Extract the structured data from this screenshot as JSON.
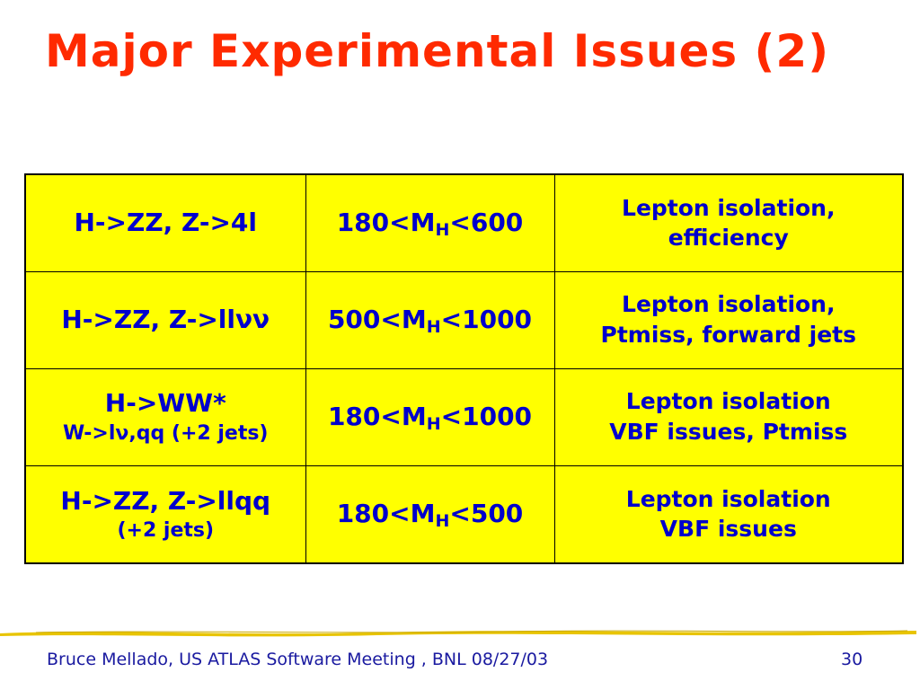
{
  "slide": {
    "title": "Major Experimental Issues (2)",
    "footer": "Bruce Mellado, US ATLAS Software Meeting , BNL 08/27/03",
    "page_number": "30"
  },
  "table": {
    "rows": [
      {
        "channel_main": "H->ZZ, Z->4l",
        "channel_sub": "",
        "mass_pre": "180<M",
        "mass_sub": "H",
        "mass_post": "<600",
        "issues": [
          "Lepton isolation,",
          "efficiency"
        ]
      },
      {
        "channel_main": "H->ZZ, Z->llνν",
        "channel_sub": "",
        "mass_pre": "500<M",
        "mass_sub": "H",
        "mass_post": "<1000",
        "issues": [
          "Lepton isolation,",
          "Ptmiss, forward jets"
        ]
      },
      {
        "channel_main": "H->WW*",
        "channel_sub": "W->lν,qq (+2 jets)",
        "mass_pre": "180<M",
        "mass_sub": "H",
        "mass_post": "<1000",
        "issues": [
          "Lepton isolation",
          "VBF issues, Ptmiss"
        ]
      },
      {
        "channel_main": "H->ZZ, Z->llqq",
        "channel_sub": "(+2 jets)",
        "mass_pre": "180<M",
        "mass_sub": "H",
        "mass_post": "<500",
        "issues": [
          "Lepton isolation",
          "VBF issues"
        ]
      }
    ]
  },
  "colors": {
    "title": "#ff2a00",
    "table_background": "#ffff00",
    "table_text": "#0000cc",
    "footer_text": "#1a1aa0",
    "rule": "#e8c400"
  }
}
